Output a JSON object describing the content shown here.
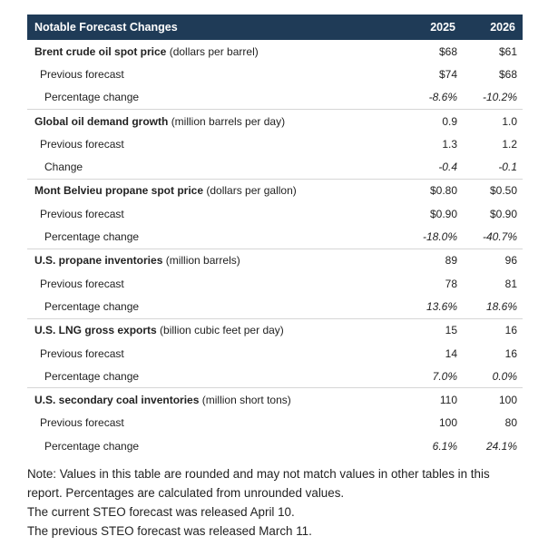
{
  "table": {
    "header": {
      "title": "Notable Forecast Changes",
      "year1": "2025",
      "year2": "2026"
    },
    "groups": [
      {
        "name": "Brent crude oil spot price",
        "unit": "(dollars per barrel)",
        "values": [
          "$68",
          "$61"
        ],
        "prev_label": "Previous forecast",
        "prev_values": [
          "$74",
          "$68"
        ],
        "change_label": "Percentage change",
        "change_values": [
          "-8.6%",
          "-10.2%"
        ]
      },
      {
        "name": "Global oil demand growth",
        "unit": "(million barrels per day)",
        "values": [
          "0.9",
          "1.0"
        ],
        "prev_label": "Previous forecast",
        "prev_values": [
          "1.3",
          "1.2"
        ],
        "change_label": "Change",
        "change_values": [
          "-0.4",
          "-0.1"
        ]
      },
      {
        "name": "Mont Belvieu propane spot price",
        "unit": "(dollars per gallon)",
        "values": [
          "$0.80",
          "$0.50"
        ],
        "prev_label": "Previous forecast",
        "prev_values": [
          "$0.90",
          "$0.90"
        ],
        "change_label": "Percentage change",
        "change_values": [
          "-18.0%",
          "-40.7%"
        ]
      },
      {
        "name": "U.S. propane inventories",
        "unit": "(million barrels)",
        "values": [
          "89",
          "96"
        ],
        "prev_label": "Previous forecast",
        "prev_values": [
          "78",
          "81"
        ],
        "change_label": "Percentage change",
        "change_values": [
          "13.6%",
          "18.6%"
        ]
      },
      {
        "name": "U.S. LNG gross exports",
        "unit": "(billion cubic feet per day)",
        "values": [
          "15",
          "16"
        ],
        "prev_label": "Previous forecast",
        "prev_values": [
          "14",
          "16"
        ],
        "change_label": "Percentage change",
        "change_values": [
          "7.0%",
          "0.0%"
        ]
      },
      {
        "name": "U.S. secondary coal inventories",
        "unit": "(million short tons)",
        "values": [
          "110",
          "100"
        ],
        "prev_label": "Previous forecast",
        "prev_values": [
          "100",
          "80"
        ],
        "change_label": "Percentage change",
        "change_values": [
          "6.1%",
          "24.1%"
        ]
      }
    ]
  },
  "notes": [
    "Note: Values in this table are rounded and may not match values in other tables in this report. Percentages are calculated from unrounded values.",
    "The current STEO forecast was released April 10.",
    "The previous STEO forecast was released March 11."
  ]
}
